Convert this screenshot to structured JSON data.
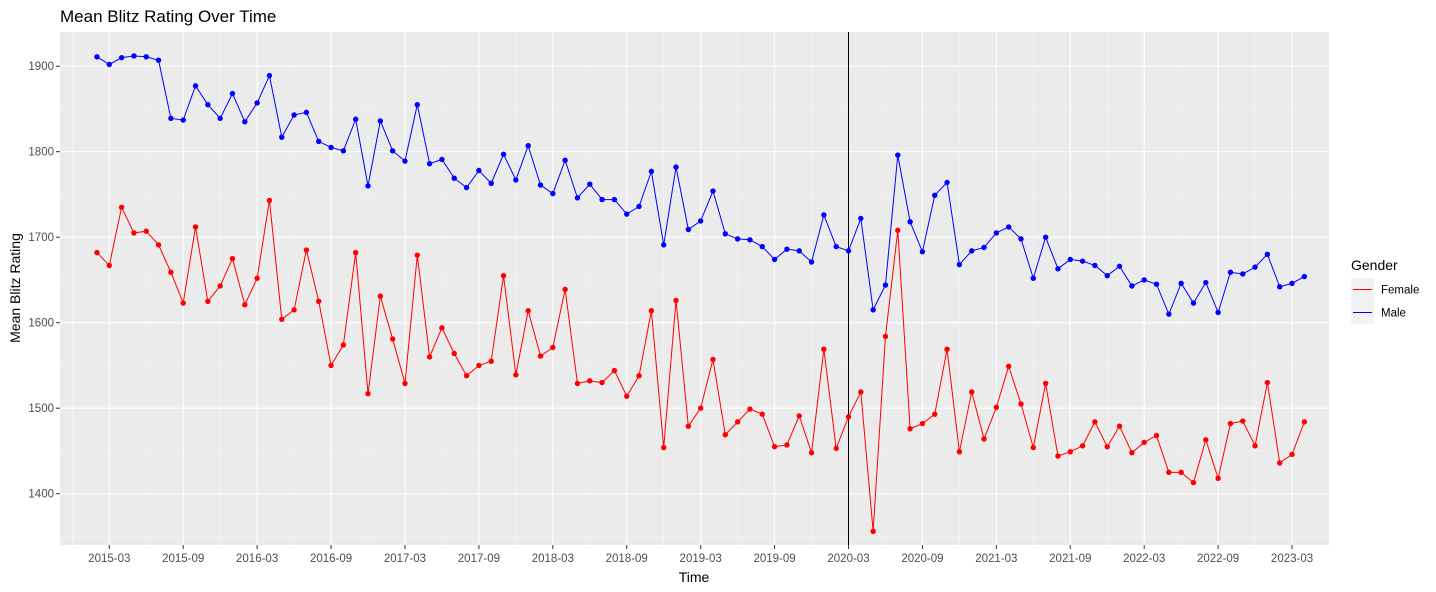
{
  "chart_data": {
    "type": "line",
    "title": "Mean Blitz Rating Over Time",
    "xlabel": "Time",
    "ylabel": "Mean Blitz Rating",
    "x_ticks": [
      "2015-03",
      "2015-09",
      "2016-03",
      "2016-09",
      "2017-03",
      "2017-09",
      "2018-03",
      "2018-09",
      "2019-03",
      "2019-09",
      "2020-03",
      "2020-09",
      "2021-03",
      "2021-09",
      "2022-03",
      "2022-09",
      "2023-03"
    ],
    "y_ticks": [
      1400,
      1500,
      1600,
      1700,
      1800,
      1900
    ],
    "ylim": [
      1340,
      1940
    ],
    "xlim": [
      "2014-11",
      "2023-06"
    ],
    "grid": true,
    "vline": "2020-03",
    "legend": {
      "title": "Gender",
      "position": "right"
    },
    "x": [
      "2015-02",
      "2015-03",
      "2015-04",
      "2015-05",
      "2015-06",
      "2015-07",
      "2015-08",
      "2015-09",
      "2015-10",
      "2015-11",
      "2015-12",
      "2016-01",
      "2016-02",
      "2016-03",
      "2016-04",
      "2016-05",
      "2016-06",
      "2016-07",
      "2016-08",
      "2016-09",
      "2016-10",
      "2016-11",
      "2016-12",
      "2017-01",
      "2017-02",
      "2017-03",
      "2017-04",
      "2017-05",
      "2017-06",
      "2017-07",
      "2017-08",
      "2017-09",
      "2017-10",
      "2017-11",
      "2017-12",
      "2018-01",
      "2018-02",
      "2018-03",
      "2018-04",
      "2018-05",
      "2018-06",
      "2018-07",
      "2018-08",
      "2018-09",
      "2018-10",
      "2018-11",
      "2018-12",
      "2019-01",
      "2019-02",
      "2019-03",
      "2019-04",
      "2019-05",
      "2019-06",
      "2019-07",
      "2019-08",
      "2019-09",
      "2019-10",
      "2019-11",
      "2019-12",
      "2020-01",
      "2020-02",
      "2020-03",
      "2020-04",
      "2020-05",
      "2020-06",
      "2020-07",
      "2020-08",
      "2020-09",
      "2020-10",
      "2020-11",
      "2020-12",
      "2021-01",
      "2021-02",
      "2021-03",
      "2021-04",
      "2021-05",
      "2021-06",
      "2021-07",
      "2021-08",
      "2021-09",
      "2021-10",
      "2021-11",
      "2021-12",
      "2022-01",
      "2022-02",
      "2022-03",
      "2022-04",
      "2022-05",
      "2022-06",
      "2022-07",
      "2022-08",
      "2022-09",
      "2022-10",
      "2022-11",
      "2022-12",
      "2023-01",
      "2023-02",
      "2023-03",
      "2023-04"
    ],
    "series": [
      {
        "name": "Female",
        "color": "#ff0000",
        "values": [
          1682,
          1667,
          1735,
          1705,
          1707,
          1691,
          1659,
          1623,
          1712,
          1625,
          1643,
          1675,
          1621,
          1652,
          1743,
          1604,
          1615,
          1685,
          1625,
          1550,
          1574,
          1682,
          1517,
          1631,
          1581,
          1529,
          1679,
          1560,
          1594,
          1564,
          1538,
          1550,
          1555,
          1655,
          1539,
          1614,
          1561,
          1571,
          1639,
          1529,
          1532,
          1530,
          1544,
          1514,
          1538,
          1614,
          1454,
          1626,
          1479,
          1500,
          1557,
          1469,
          1484,
          1499,
          1493,
          1455,
          1457,
          1491,
          1448,
          1569,
          1453,
          1490,
          1519,
          1356,
          1584,
          1708,
          1476,
          1482,
          1493,
          1569,
          1449,
          1519,
          1464,
          1501,
          1549,
          1505,
          1454,
          1529,
          1444,
          1449,
          1456,
          1484,
          1455,
          1479,
          1448,
          1460,
          1468,
          1425,
          1425,
          1413,
          1463,
          1418,
          1482,
          1485,
          1456,
          1530,
          1436,
          1446,
          1484
        ]
      },
      {
        "name": "Male",
        "color": "#0000ff",
        "values": [
          1911,
          1902,
          1910,
          1912,
          1911,
          1907,
          1839,
          1837,
          1877,
          1855,
          1839,
          1868,
          1835,
          1857,
          1889,
          1817,
          1843,
          1846,
          1812,
          1805,
          1801,
          1838,
          1760,
          1836,
          1801,
          1789,
          1855,
          1786,
          1791,
          1769,
          1758,
          1778,
          1763,
          1797,
          1767,
          1807,
          1761,
          1751,
          1790,
          1746,
          1762,
          1744,
          1744,
          1727,
          1736,
          1777,
          1691,
          1782,
          1709,
          1719,
          1754,
          1704,
          1698,
          1697,
          1689,
          1674,
          1686,
          1684,
          1671,
          1726,
          1689,
          1684,
          1722,
          1615,
          1644,
          1796,
          1718,
          1683,
          1749,
          1764,
          1668,
          1684,
          1688,
          1705,
          1712,
          1698,
          1652,
          1700,
          1663,
          1674,
          1672,
          1667,
          1655,
          1666,
          1643,
          1650,
          1645,
          1610,
          1646,
          1623,
          1647,
          1612,
          1659,
          1657,
          1665,
          1680,
          1642,
          1646,
          1654
        ]
      }
    ]
  }
}
